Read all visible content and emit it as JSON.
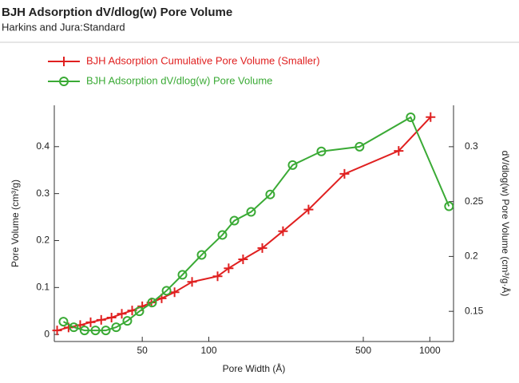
{
  "chart_data": {
    "type": "line",
    "title": "BJH Adsorption dV/dlog(w) Pore Volume",
    "subtitle": "Harkins and Jura:Standard",
    "xlabel": "Pore Width (Å)",
    "ylabel": "Pore Volume (cm³/g)",
    "y2label": "dV/dlog(w) Pore Volume (cm³/g·Å)",
    "xscale": "log",
    "xlim": [
      20,
      1280
    ],
    "xticks": [
      50,
      100,
      500,
      1000
    ],
    "ylim": [
      -0.015,
      0.488
    ],
    "yticks": [
      0,
      0.1,
      0.2,
      0.3,
      0.4
    ],
    "y2lim": [
      0.1225,
      0.3377
    ],
    "y2ticks": [
      0.15,
      0.2,
      0.25,
      0.3
    ],
    "series": [
      {
        "name": "BJH Adsorption Cumulative Pore Volume (Smaller)",
        "color": "#e02020",
        "marker": "plus",
        "x": [
          20.6,
          23.2,
          26.2,
          29.2,
          32.6,
          36.3,
          40.4,
          45.0,
          50,
          55.0,
          61.2,
          70.0,
          84.0,
          109.6,
          123,
          142.9,
          174.6,
          216.6,
          282.7,
          411,
          723,
          1008
        ],
        "values": [
          0.0085,
          0.015,
          0.02,
          0.026,
          0.031,
          0.036,
          0.044,
          0.051,
          0.06,
          0.068,
          0.077,
          0.09,
          0.112,
          0.124,
          0.141,
          0.16,
          0.184,
          0.22,
          0.266,
          0.342,
          0.391,
          0.463
        ]
      },
      {
        "name": "BJH Adsorption dV/dlog(w) Pore Volume",
        "color": "#3aaa35",
        "marker": "circle",
        "axis": "y2",
        "x": [
          22.0,
          24.5,
          27.4,
          30.7,
          34.2,
          38.1,
          42.8,
          48.5,
          55.4,
          64.4,
          76.0,
          92.8,
          115.2,
          130.5,
          155.4,
          189.6,
          239.5,
          323,
          481,
          819,
          1221
        ],
        "values": [
          0.1406,
          0.1355,
          0.1326,
          0.1326,
          0.1326,
          0.1355,
          0.1413,
          0.15,
          0.158,
          0.1688,
          0.1833,
          0.2014,
          0.2196,
          0.2326,
          0.2406,
          0.2565,
          0.2833,
          0.2957,
          0.3,
          0.3268,
          0.2457
        ]
      }
    ]
  }
}
